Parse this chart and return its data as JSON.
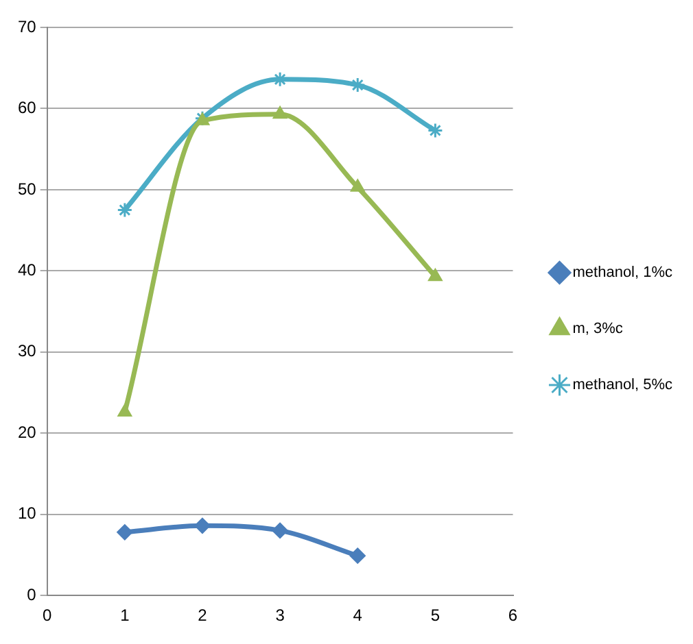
{
  "chart_data": {
    "type": "line",
    "x": [
      1,
      2,
      3,
      4,
      5
    ],
    "xlim": [
      0,
      6
    ],
    "xticks": [
      0,
      1,
      2,
      3,
      4,
      5,
      6
    ],
    "ylim": [
      0,
      70
    ],
    "yticks": [
      0,
      10,
      20,
      30,
      40,
      50,
      60,
      70
    ],
    "grid": "y",
    "legend": "right",
    "series": [
      {
        "name": "methanol, 1%c",
        "color": "#4a7ebb",
        "marker": "diamond",
        "x": [
          1,
          2,
          3,
          4
        ],
        "values": [
          7.8,
          8.6,
          8.0,
          4.9
        ]
      },
      {
        "name": "m, 3%c",
        "color": "#98b954",
        "marker": "triangle",
        "values": [
          22.6,
          58.5,
          59.3,
          50.3,
          39.3
        ]
      },
      {
        "name": "methanol, 5%c",
        "color": "#4bacc6",
        "marker": "cross",
        "values": [
          47.5,
          58.8,
          63.6,
          62.9,
          57.3
        ]
      }
    ]
  }
}
